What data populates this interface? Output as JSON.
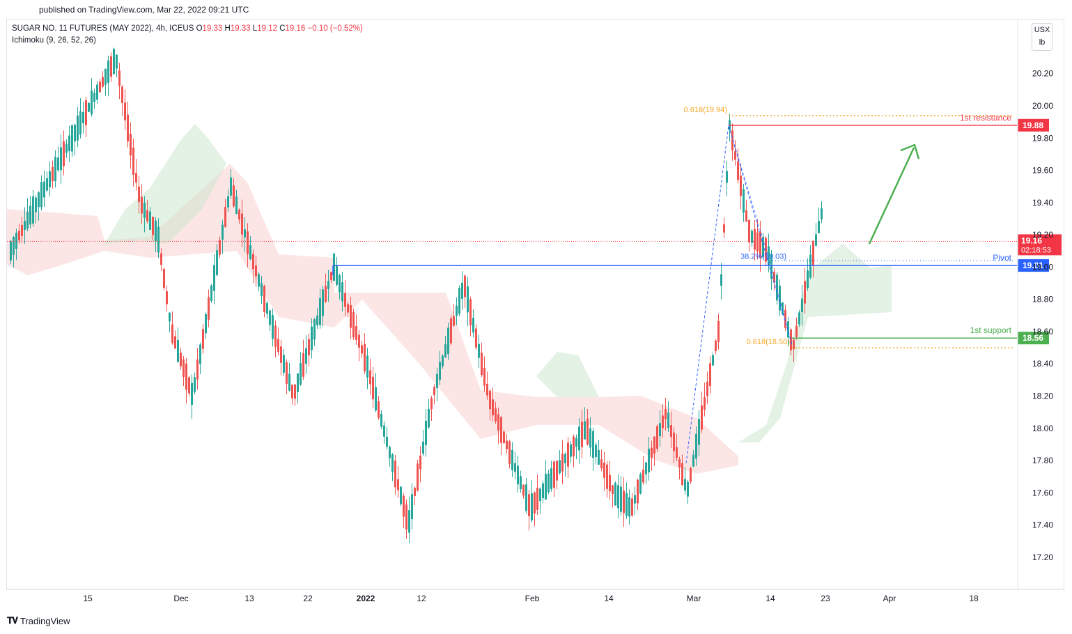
{
  "header": {
    "published": "published on TradingView.com, Mar 22, 2022 09:21 UTC"
  },
  "legend": {
    "symbol": "SUGAR NO. 11 FUTURES (MAY 2022), 4h, ICEUS",
    "open_label": "O",
    "open": "19.33",
    "high_label": "H",
    "high": "19.33",
    "low_label": "L",
    "low": "19.12",
    "close_label": "C",
    "close": "19.16",
    "change": "−0.10 (−0.52%)",
    "indicator": "Ichimoku (9, 26, 52, 26)"
  },
  "unit_buttons": {
    "currency": "USX",
    "unit": "lb"
  },
  "footer": {
    "brand": "TradingView",
    "logo": "tv-logo"
  },
  "colors": {
    "up": "#26a69a",
    "down": "#ef5350",
    "pivot": "#2962ff",
    "resistance": "#f23645",
    "support": "#4caf50",
    "fib": "#f5a623"
  },
  "chart_data": {
    "type": "candlestick",
    "interval": "4h",
    "y_ticks": [
      "20.20",
      "20.00",
      "19.80",
      "19.60",
      "19.40",
      "19.20",
      "19.00",
      "18.80",
      "18.60",
      "18.40",
      "18.20",
      "18.00",
      "17.80",
      "17.60",
      "17.40",
      "17.20"
    ],
    "x_ticks": [
      {
        "label": "15",
        "bold": false
      },
      {
        "label": "Dec",
        "bold": false
      },
      {
        "label": "13",
        "bold": false
      },
      {
        "label": "22",
        "bold": false
      },
      {
        "label": "2022",
        "bold": true
      },
      {
        "label": "12",
        "bold": false
      },
      {
        "label": "Feb",
        "bold": false
      },
      {
        "label": "14",
        "bold": false
      },
      {
        "label": "Mar",
        "bold": false
      },
      {
        "label": "14",
        "bold": false
      },
      {
        "label": "23",
        "bold": false
      },
      {
        "label": "Apr",
        "bold": false
      },
      {
        "label": "18",
        "bold": false
      }
    ],
    "ylim": [
      17.0,
      20.3
    ],
    "last_price": {
      "value": "19.16",
      "countdown": "02:18:53"
    },
    "levels": [
      {
        "name": "1st resistance",
        "value": 19.88,
        "label": "19.88"
      },
      {
        "name": "Pivot",
        "value": 19.01,
        "label": "19.01"
      },
      {
        "name": "1st support",
        "value": 18.56,
        "label": "18.56"
      }
    ],
    "fib_levels": [
      {
        "label": "0.618(19.94)",
        "value": 19.94
      },
      {
        "label": "0.618(18.50)",
        "value": 18.5
      },
      {
        "label": "38.2%(19.03)",
        "value": 19.03
      }
    ],
    "swing_points": [
      {
        "date": "Nov 15",
        "value": 19.1
      },
      {
        "date": "Nov 18",
        "value": 20.3
      },
      {
        "date": "Nov 26",
        "value": 19.4
      },
      {
        "date": "Nov 30",
        "value": 19.2
      },
      {
        "date": "Dec 3",
        "value": 18.6
      },
      {
        "date": "Dec 6",
        "value": 18.2
      },
      {
        "date": "Dec 14",
        "value": 19.5
      },
      {
        "date": "Dec 20",
        "value": 18.7
      },
      {
        "date": "Dec 22",
        "value": 18.2
      },
      {
        "date": "Dec 28",
        "value": 19.0
      },
      {
        "date": "Jan 3",
        "value": 18.4
      },
      {
        "date": "Jan 10",
        "value": 17.4
      },
      {
        "date": "Jan 13",
        "value": 18.2
      },
      {
        "date": "Jan 18",
        "value": 18.9
      },
      {
        "date": "Jan 25",
        "value": 18.2
      },
      {
        "date": "Feb 1",
        "value": 17.5
      },
      {
        "date": "Feb 9",
        "value": 18.0
      },
      {
        "date": "Feb 14",
        "value": 17.6
      },
      {
        "date": "Feb 21",
        "value": 17.5
      },
      {
        "date": "Feb 24",
        "value": 18.1
      },
      {
        "date": "Feb 28",
        "value": 17.6
      },
      {
        "date": "Mar 3",
        "value": 18.6
      },
      {
        "date": "Mar 7",
        "value": 19.88
      },
      {
        "date": "Mar 11",
        "value": 19.2
      },
      {
        "date": "Mar 14",
        "value": 19.1
      },
      {
        "date": "Mar 17",
        "value": 18.5
      },
      {
        "date": "Mar 21",
        "value": 19.33
      },
      {
        "date": "Mar 22",
        "value": 19.16
      }
    ]
  }
}
